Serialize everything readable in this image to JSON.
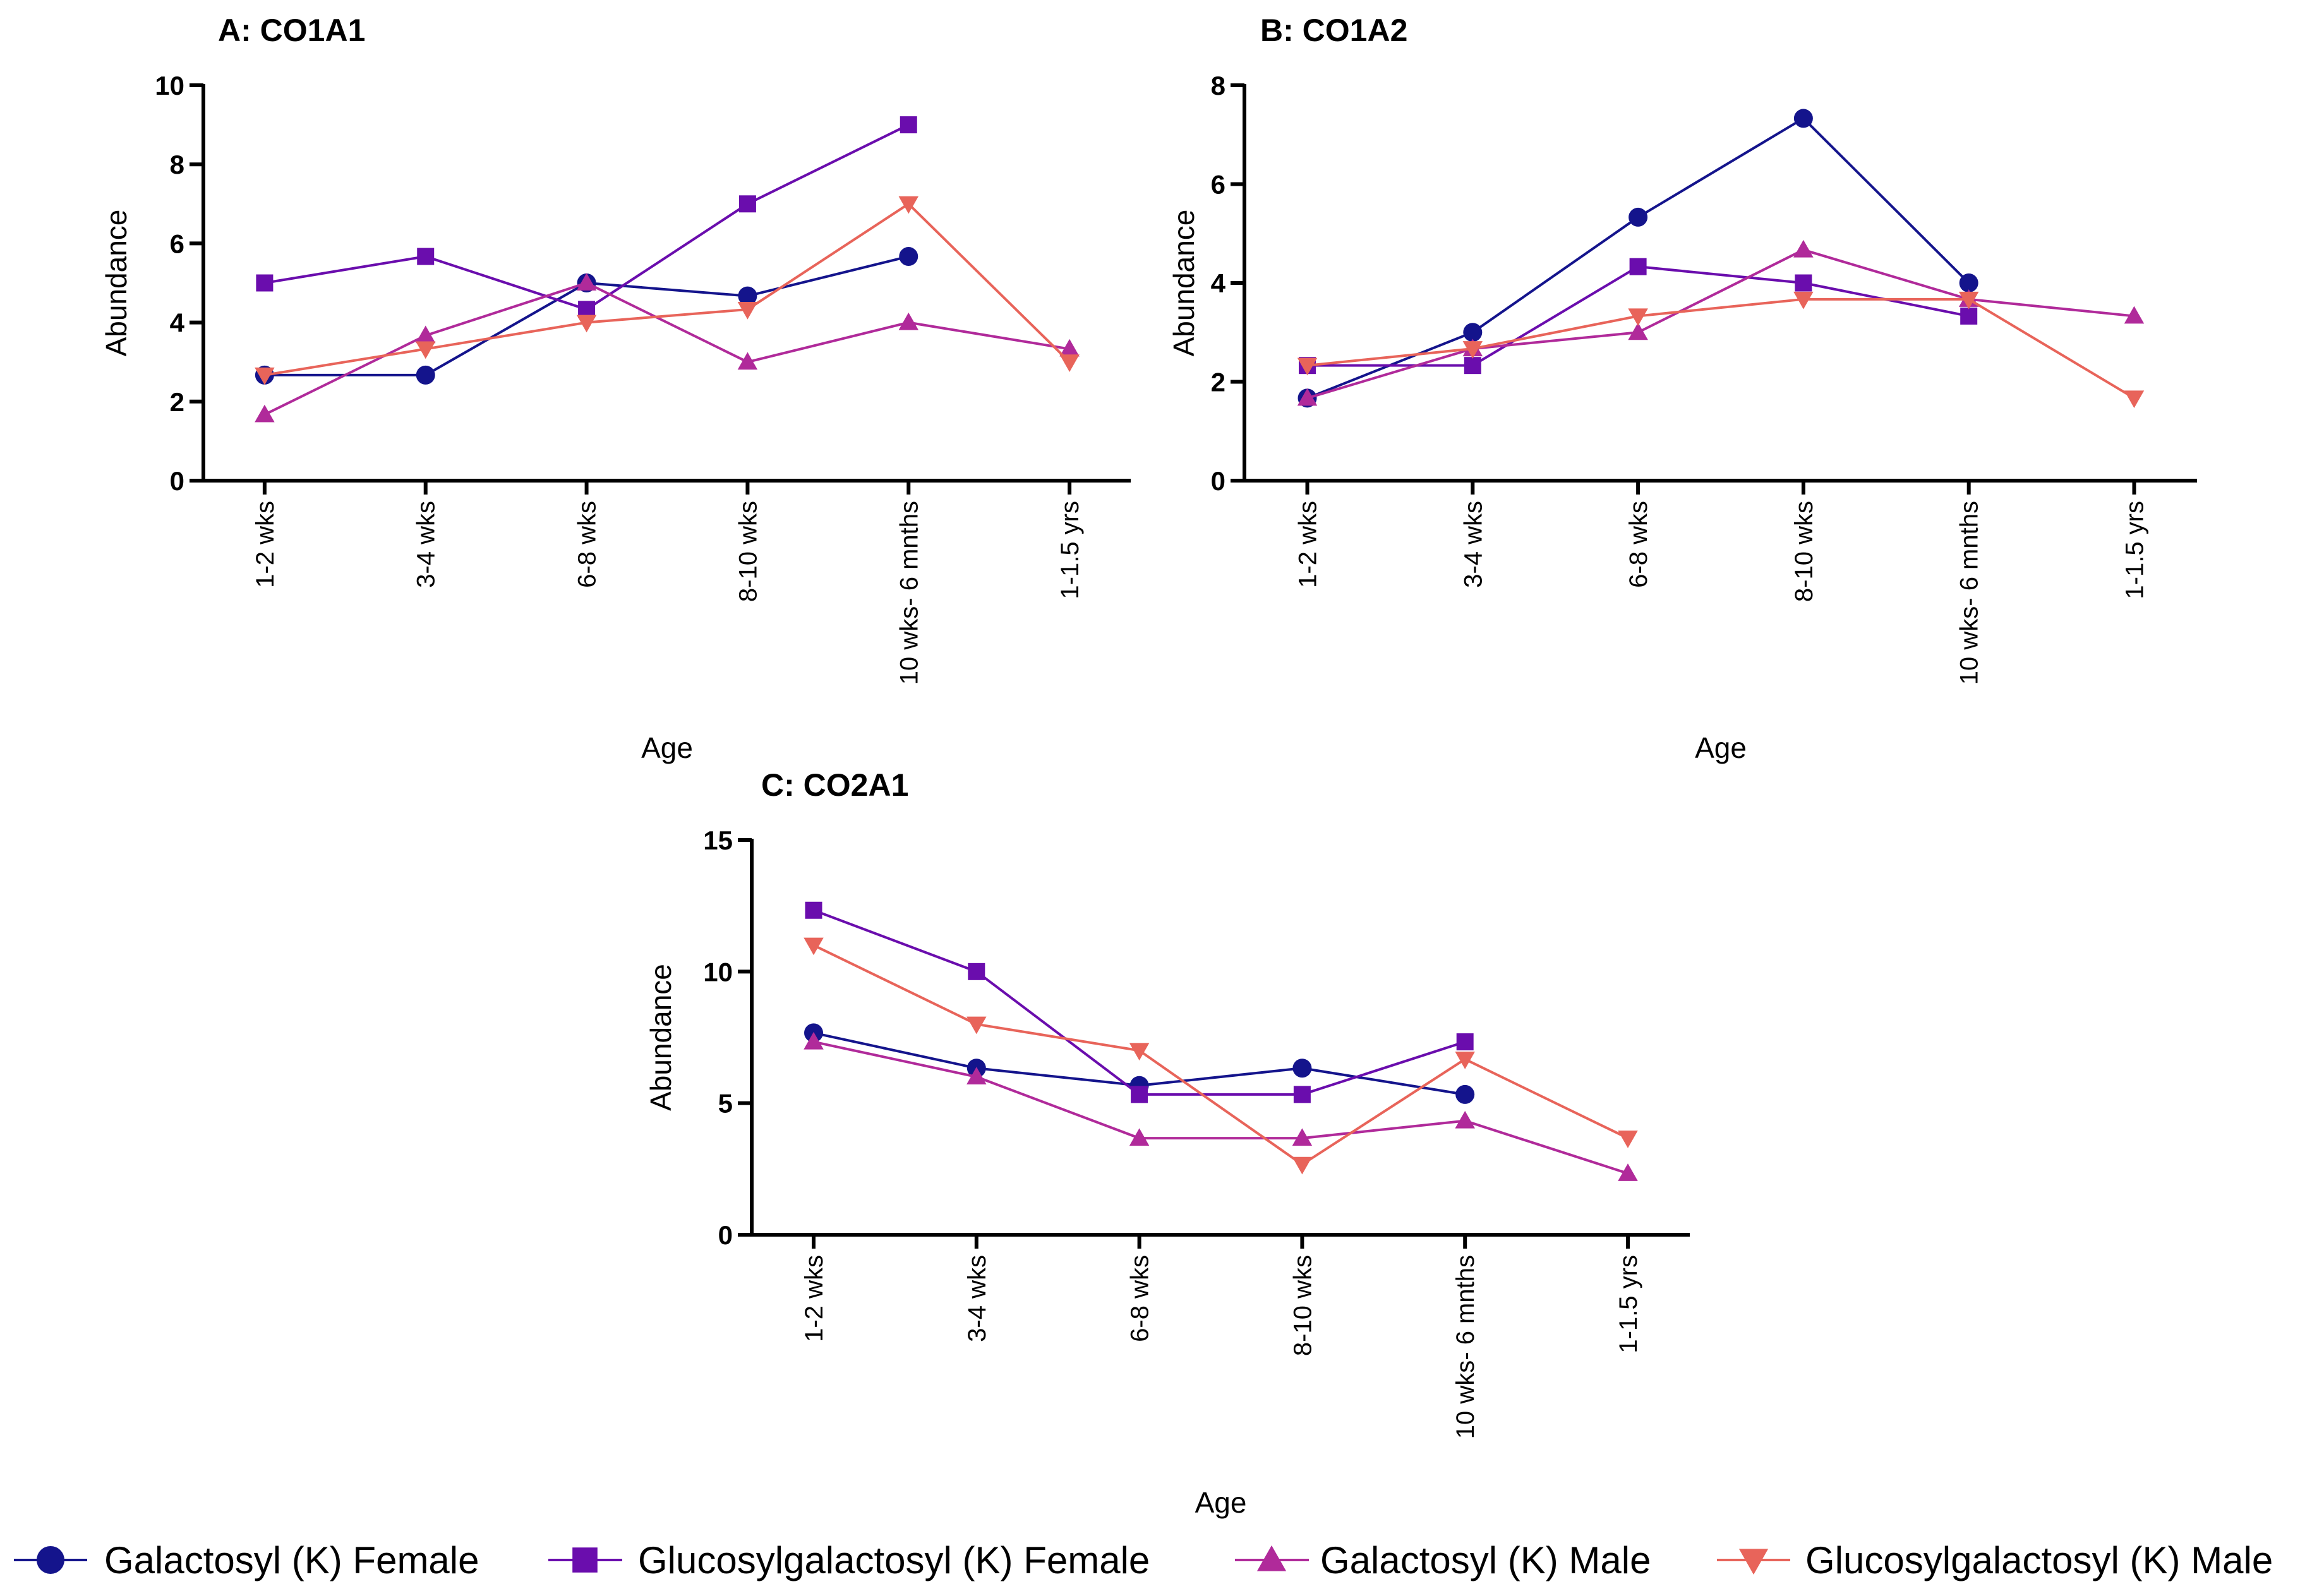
{
  "chart_data": [
    {
      "id": "A",
      "type": "line",
      "title": "A: CO1A1",
      "xlabel": "Age",
      "ylabel": "Abundance",
      "ylim": [
        0,
        10
      ],
      "yticks": [
        "0",
        "2",
        "4",
        "6",
        "8",
        "10"
      ],
      "categories": [
        "1-2 wks",
        "3-4 wks",
        "6-8 wks",
        "8-10 wks",
        "10 wks- 6 mnths",
        "1-1.5 yrs"
      ],
      "series": [
        {
          "name": "Galactosyl (K) Female",
          "values": [
            2.67,
            2.67,
            5.0,
            4.67,
            5.67,
            null
          ]
        },
        {
          "name": "Glucosylgalactosyl (K) Female",
          "values": [
            5.0,
            5.67,
            4.33,
            7.0,
            9.0,
            null
          ]
        },
        {
          "name": "Galactosyl (K) Male",
          "values": [
            1.67,
            3.67,
            5.0,
            3.0,
            4.0,
            3.33
          ]
        },
        {
          "name": "Glucosylgalactosyl (K) Male",
          "values": [
            2.67,
            3.33,
            4.0,
            4.33,
            7.0,
            3.0
          ]
        }
      ]
    },
    {
      "id": "B",
      "type": "line",
      "title": "B: CO1A2",
      "xlabel": "Age",
      "ylabel": "Abundance",
      "ylim": [
        0,
        8
      ],
      "yticks": [
        "0",
        "2",
        "4",
        "6",
        "8"
      ],
      "categories": [
        "1-2 wks",
        "3-4 wks",
        "6-8 wks",
        "8-10 wks",
        "10 wks- 6 mnths",
        "1-1.5 yrs"
      ],
      "series": [
        {
          "name": "Galactosyl (K) Female",
          "values": [
            1.67,
            3.0,
            5.33,
            7.33,
            4.0,
            null
          ]
        },
        {
          "name": "Glucosylgalactosyl (K) Female",
          "values": [
            2.33,
            2.33,
            4.33,
            4.0,
            3.33,
            null
          ]
        },
        {
          "name": "Galactosyl (K) Male",
          "values": [
            1.67,
            2.67,
            3.0,
            4.67,
            3.67,
            3.33
          ]
        },
        {
          "name": "Glucosylgalactosyl (K) Male",
          "values": [
            2.33,
            2.67,
            3.33,
            3.67,
            3.67,
            1.67
          ]
        }
      ]
    },
    {
      "id": "C",
      "type": "line",
      "title": "C: CO2A1",
      "xlabel": "Age",
      "ylabel": "Abundance",
      "ylim": [
        0,
        15
      ],
      "yticks": [
        "0",
        "5",
        "10",
        "15"
      ],
      "categories": [
        "1-2 wks",
        "3-4 wks",
        "6-8 wks",
        "8-10 wks",
        "10 wks- 6 mnths",
        "1-1.5 yrs"
      ],
      "series": [
        {
          "name": "Galactosyl (K) Female",
          "values": [
            7.67,
            6.33,
            5.67,
            6.33,
            5.33,
            null
          ]
        },
        {
          "name": "Glucosylgalactosyl (K) Female",
          "values": [
            12.33,
            10.0,
            5.33,
            5.33,
            7.33,
            null
          ]
        },
        {
          "name": "Galactosyl (K) Male",
          "values": [
            7.33,
            6.0,
            3.67,
            3.67,
            4.33,
            2.33
          ]
        },
        {
          "name": "Glucosylgalactosyl (K) Male",
          "values": [
            11.0,
            8.0,
            7.0,
            2.67,
            6.67,
            3.67
          ]
        }
      ]
    }
  ],
  "legend": [
    {
      "name": "Galactosyl (K) Female",
      "marker": "circle",
      "color": "#14148c"
    },
    {
      "name": "Glucosylgalactosyl (K) Female",
      "marker": "square",
      "color": "#6a0dad"
    },
    {
      "name": "Galactosyl (K) Male",
      "marker": "triangle-up",
      "color": "#b02a9a"
    },
    {
      "name": "Glucosylgalactosyl (K) Male",
      "marker": "triangle-down",
      "color": "#e8645a"
    }
  ]
}
